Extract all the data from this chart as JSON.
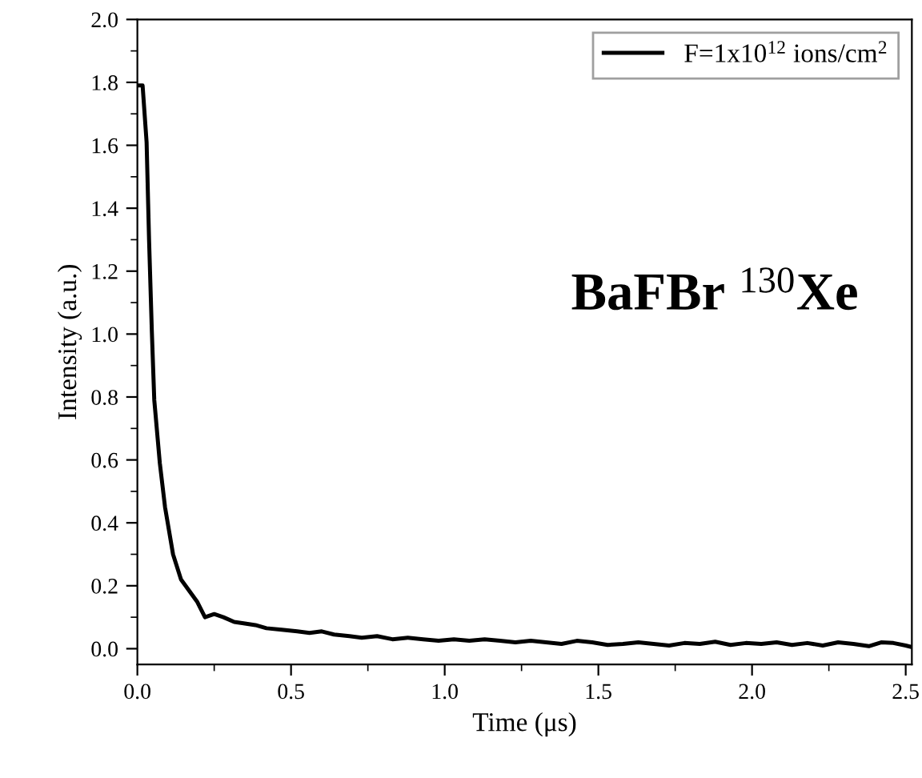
{
  "chart_data": {
    "type": "line",
    "xlabel": "Time (μs)",
    "ylabel": "Intensity (a.u.)",
    "annotations": [
      "BaFBr $^{130}$Xe"
    ],
    "series": [
      {
        "name": "F=1x10$^{12}$ ions/cm$^{2}$",
        "color": "#000000",
        "x": [
          0.0,
          0.017,
          0.03,
          0.038,
          0.047,
          0.055,
          0.073,
          0.09,
          0.116,
          0.142,
          0.194,
          0.22,
          0.25,
          0.28,
          0.315,
          0.35,
          0.384,
          0.42,
          0.47,
          0.52,
          0.56,
          0.6,
          0.64,
          0.69,
          0.73,
          0.78,
          0.83,
          0.88,
          0.93,
          0.98,
          1.03,
          1.08,
          1.13,
          1.18,
          1.23,
          1.28,
          1.33,
          1.38,
          1.43,
          1.48,
          1.53,
          1.58,
          1.63,
          1.68,
          1.73,
          1.78,
          1.83,
          1.88,
          1.93,
          1.98,
          2.03,
          2.08,
          2.13,
          2.18,
          2.23,
          2.28,
          2.33,
          2.38,
          2.42,
          2.46,
          2.5,
          2.52
        ],
        "values": [
          1.79,
          1.79,
          1.61,
          1.3,
          1.01,
          0.79,
          0.59,
          0.45,
          0.3,
          0.22,
          0.15,
          0.1,
          0.11,
          0.1,
          0.085,
          0.08,
          0.075,
          0.065,
          0.06,
          0.055,
          0.05,
          0.055,
          0.045,
          0.04,
          0.035,
          0.04,
          0.03,
          0.035,
          0.03,
          0.025,
          0.03,
          0.025,
          0.03,
          0.025,
          0.02,
          0.025,
          0.02,
          0.015,
          0.025,
          0.02,
          0.012,
          0.015,
          0.02,
          0.015,
          0.01,
          0.018,
          0.015,
          0.022,
          0.012,
          0.018,
          0.015,
          0.02,
          0.012,
          0.018,
          0.01,
          0.02,
          0.015,
          0.008,
          0.02,
          0.018,
          0.01,
          0.005
        ]
      }
    ],
    "xlim": [
      0,
      2.52
    ],
    "ylim": [
      -0.05,
      2.0
    ],
    "xticks": [
      {
        "value": 0,
        "label": "0.0"
      },
      0.5,
      {
        "value": 1,
        "label": "1.0"
      },
      1.5,
      {
        "value": 2,
        "label": "2.0"
      },
      2.5
    ],
    "yticks": [
      {
        "value": 0,
        "label": "0.0"
      },
      0.2,
      0.4,
      0.6,
      0.8,
      {
        "value": 1,
        "label": "1.0"
      },
      1.2,
      1.4,
      1.6,
      1.8,
      {
        "value": 2,
        "label": "2.0"
      }
    ],
    "legend": "top right",
    "grid": false,
    "line_style": "solid",
    "marker": "none"
  }
}
